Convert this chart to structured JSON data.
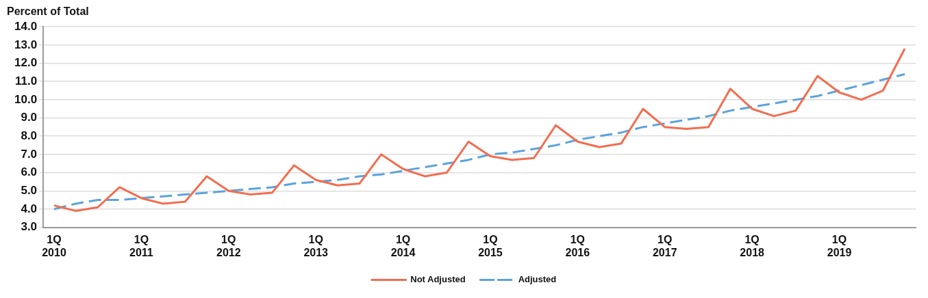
{
  "chart_data": {
    "type": "line",
    "ylabel": "Percent of Total",
    "categories": [
      "1Q\n2010",
      null,
      null,
      null,
      "1Q\n2011",
      null,
      null,
      null,
      "1Q\n2012",
      null,
      null,
      null,
      "1Q\n2013",
      null,
      null,
      null,
      "1Q\n2014",
      null,
      null,
      null,
      "1Q\n2015",
      null,
      null,
      null,
      "1Q\n2016",
      null,
      null,
      null,
      "1Q\n2017",
      null,
      null,
      null,
      "1Q\n2018",
      null,
      null,
      null,
      "1Q\n2019",
      null,
      null,
      null
    ],
    "series": [
      {
        "name": "Not Adjusted",
        "color": "#f26d4f",
        "line_style": "solid",
        "values": [
          4.2,
          3.9,
          4.1,
          5.2,
          4.6,
          4.3,
          4.4,
          5.8,
          5.0,
          4.8,
          4.9,
          6.4,
          5.6,
          5.3,
          5.4,
          7.0,
          6.2,
          5.8,
          6.0,
          7.7,
          6.9,
          6.7,
          6.8,
          8.6,
          7.7,
          7.4,
          7.6,
          9.5,
          8.5,
          8.4,
          8.5,
          10.6,
          9.5,
          9.1,
          9.4,
          11.3,
          10.4,
          10.0,
          10.5,
          12.8
        ]
      },
      {
        "name": "Adjusted",
        "color": "#5ba3dc",
        "line_style": "dashed",
        "values": [
          4.0,
          4.3,
          4.5,
          4.5,
          4.6,
          4.7,
          4.8,
          4.9,
          5.0,
          5.1,
          5.2,
          5.4,
          5.5,
          5.6,
          5.8,
          5.9,
          6.1,
          6.3,
          6.5,
          6.7,
          7.0,
          7.1,
          7.3,
          7.5,
          7.8,
          8.0,
          8.2,
          8.5,
          8.7,
          8.9,
          9.1,
          9.4,
          9.6,
          9.8,
          10.0,
          10.2,
          10.5,
          10.8,
          11.1,
          11.4
        ]
      }
    ],
    "ylim": [
      3.0,
      14.0
    ],
    "yticks": [
      {
        "value": 3,
        "label": "3.0"
      },
      {
        "value": 4,
        "label": "4.0"
      },
      {
        "value": 5,
        "label": "5.0"
      },
      {
        "value": 6,
        "label": "6.0"
      },
      {
        "value": 7,
        "label": "7.0"
      },
      {
        "value": 8,
        "label": "8.0"
      },
      {
        "value": 9,
        "label": "9.0"
      },
      {
        "value": 10,
        "label": "10.0"
      },
      {
        "value": 11,
        "label": "11.0"
      },
      {
        "value": 12,
        "label": "12.0"
      },
      {
        "value": 13,
        "label": "13.0"
      },
      {
        "value": 14,
        "label": "14.0"
      }
    ],
    "grid": "y",
    "legend": "bottom",
    "marker": "none"
  }
}
